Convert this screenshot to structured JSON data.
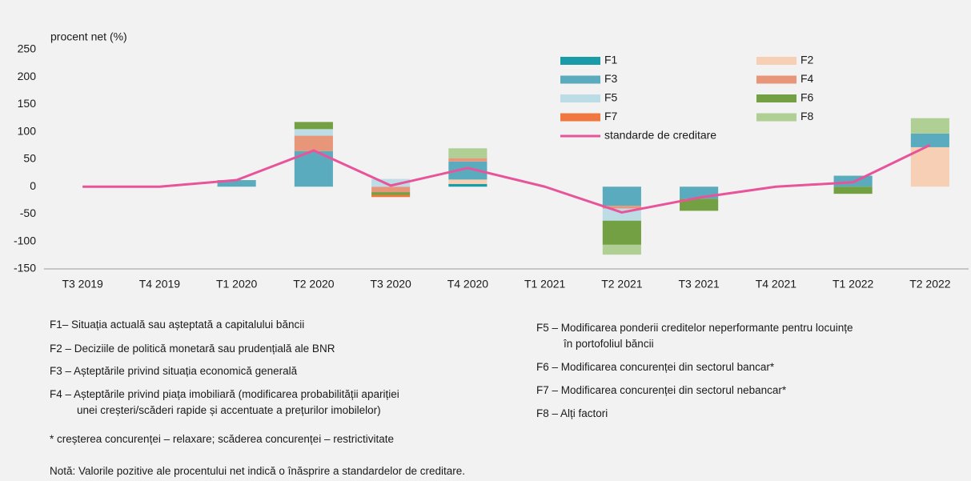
{
  "chart_data": {
    "type": "stacked_bar_line",
    "y_label": "procent net (%)",
    "categories": [
      "T3 2019",
      "T4 2019",
      "T1 2020",
      "T2 2020",
      "T3 2020",
      "T4 2020",
      "T1 2021",
      "T2 2021",
      "T3 2021",
      "T4 2021",
      "T1 2022",
      "T2 2022"
    ],
    "ylim": [
      -150,
      250
    ],
    "yticks": [
      250,
      200,
      150,
      100,
      50,
      0,
      -50,
      -100,
      -150
    ],
    "series": [
      {
        "name": "F1",
        "color": "#1a9ba8",
        "values": [
          0,
          0,
          0,
          0,
          0,
          5,
          0,
          0,
          0,
          0,
          0,
          0
        ]
      },
      {
        "name": "F2",
        "color": "#f6cfb5",
        "values": [
          0,
          0,
          0,
          0,
          0,
          8,
          0,
          0,
          0,
          0,
          0,
          72
        ]
      },
      {
        "name": "F3",
        "color": "#5aabbd",
        "values": [
          0,
          0,
          12,
          65,
          0,
          33,
          0,
          -35,
          -22,
          0,
          20,
          25
        ]
      },
      {
        "name": "F4",
        "color": "#e8967a",
        "values": [
          0,
          0,
          0,
          28,
          -10,
          6,
          0,
          -5,
          0,
          0,
          0,
          0
        ]
      },
      {
        "name": "F5",
        "color": "#bcdce6",
        "values": [
          0,
          0,
          0,
          12,
          14,
          0,
          0,
          -22,
          0,
          0,
          0,
          0
        ]
      },
      {
        "name": "F6",
        "color": "#72a042",
        "values": [
          0,
          0,
          0,
          13,
          -5,
          0,
          0,
          -44,
          -22,
          0,
          -13,
          0
        ]
      },
      {
        "name": "F7",
        "color": "#f07840",
        "values": [
          0,
          0,
          0,
          0,
          -4,
          0,
          0,
          0,
          0,
          0,
          0,
          0
        ]
      },
      {
        "name": "F8",
        "color": "#b0cf94",
        "values": [
          0,
          0,
          0,
          0,
          0,
          18,
          0,
          -18,
          0,
          0,
          0,
          28
        ]
      }
    ],
    "line_series": {
      "name": "standarde de creditare",
      "color": "#e8549a",
      "values": [
        0,
        0,
        12,
        66,
        2,
        34,
        0,
        -47,
        -20,
        0,
        8,
        76
      ]
    }
  },
  "notes_left": [
    {
      "lines": [
        "F1– Situația actuală sau așteptată a capitalului băncii"
      ]
    },
    {
      "lines": [
        "F2 – Deciziile de politică monetară sau prudențială ale BNR"
      ]
    },
    {
      "lines": [
        "F3 – Așteptările privind situația economică generală"
      ]
    },
    {
      "lines": [
        "F4 – Așteptările privind piața imobiliară (modificarea probabilității apariției",
        "unei creșteri/scăderi rapide și accentuate a prețurilor imobilelor)"
      ]
    }
  ],
  "notes_right": [
    {
      "lines": [
        "F5 – Modificarea ponderii creditelor neperformante pentru locuințe",
        "în portofoliul băncii"
      ]
    },
    {
      "lines": [
        "F6 – Modificarea concurenței din sectorul bancar*"
      ]
    },
    {
      "lines": [
        "F7 – Modificarea concurenței din sectorul nebancar*"
      ]
    },
    {
      "lines": [
        "F8 – Alți factori"
      ]
    }
  ],
  "footnote": "* creșterea concurenței – relaxare; scăderea concurenței – restrictivitate",
  "note": "Notă: Valorile pozitive ale procentului net indică o înăsprire a standardelor de creditare."
}
